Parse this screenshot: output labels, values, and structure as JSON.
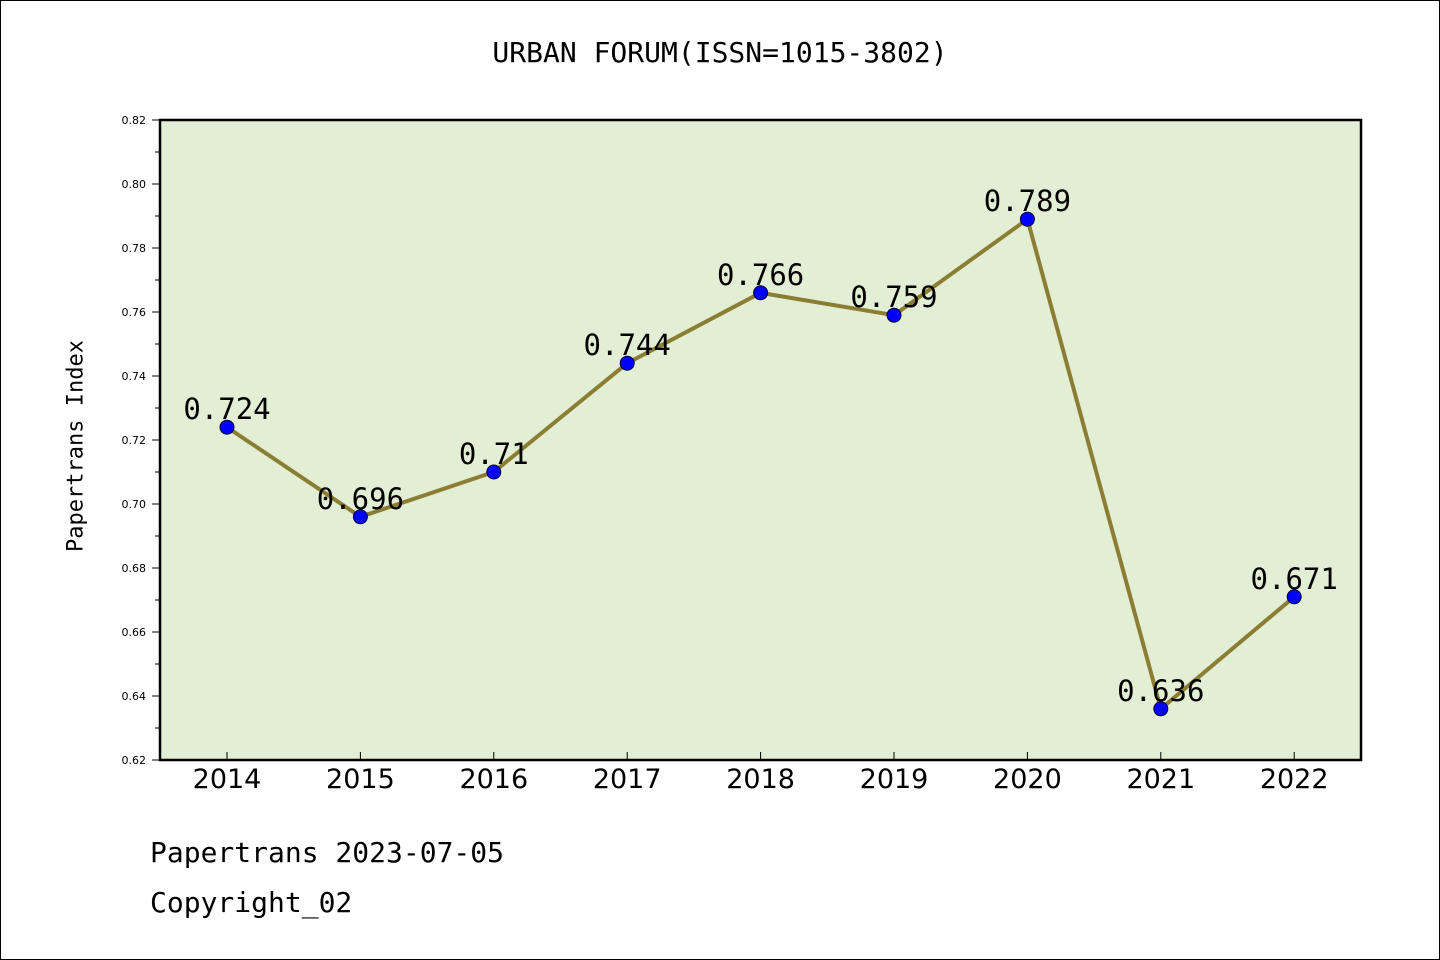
{
  "colors": {
    "plot_background": "#e2efd4",
    "line": "#8b7d34",
    "marker": "#0000ff",
    "axes": "#000000"
  },
  "footer": {
    "line1": "Papertrans 2023-07-05",
    "line2": "Copyright_02"
  },
  "chart_data": {
    "type": "line",
    "title": "URBAN FORUM(ISSN=1015-3802)",
    "xlabel": "",
    "ylabel": "Papertrans Index",
    "ylim": [
      0.62,
      0.82
    ],
    "yticks": [
      "0.62",
      "0.64",
      "0.66",
      "0.68",
      "0.70",
      "0.72",
      "0.74",
      "0.76",
      "0.78",
      "0.80",
      "0.82"
    ],
    "categories": [
      "2014",
      "2015",
      "2016",
      "2017",
      "2018",
      "2019",
      "2020",
      "2021",
      "2022"
    ],
    "values": [
      0.724,
      0.696,
      0.71,
      0.744,
      0.766,
      0.759,
      0.789,
      0.636,
      0.671
    ],
    "data_labels": [
      "0.724",
      "0.696",
      "0.71",
      "0.744",
      "0.766",
      "0.759",
      "0.789",
      "0.636",
      "0.671"
    ],
    "grid": false,
    "legend": "none"
  }
}
